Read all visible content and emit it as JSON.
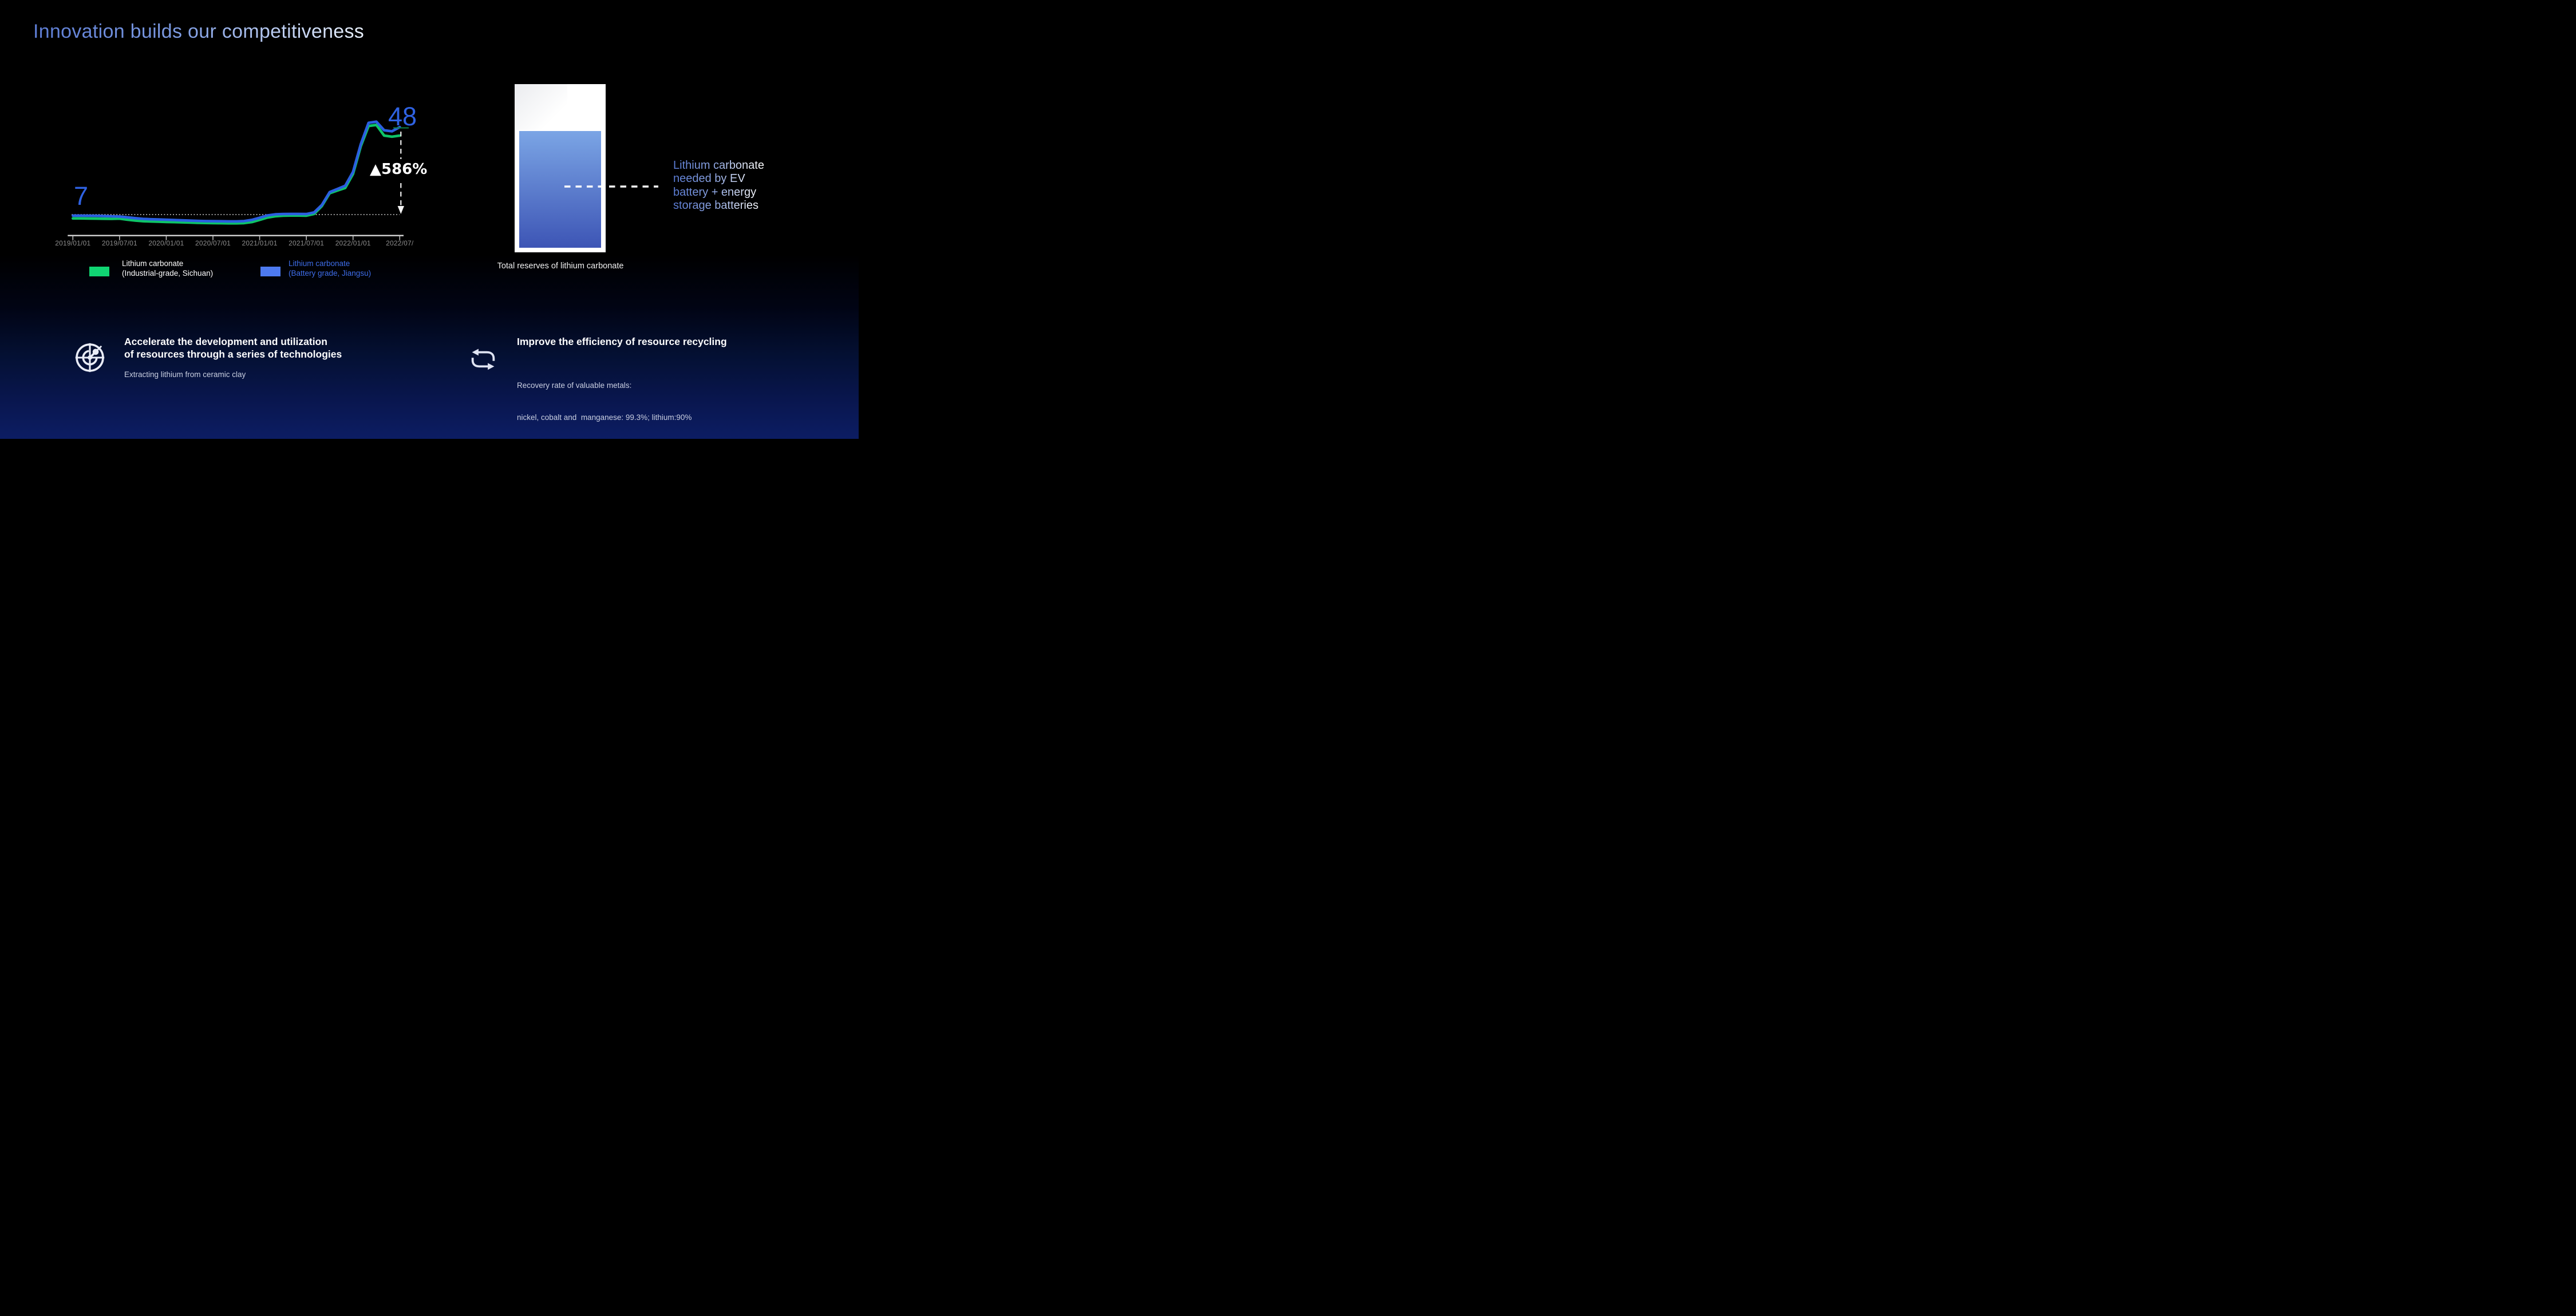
{
  "slide": {
    "title": "Innovation builds our competitiveness",
    "title_color_left": "#5d7dd5",
    "title_color_right": "#e9f1fc",
    "background_top": "#000000",
    "background_bottom": "#0c1d63"
  },
  "chart_data": {
    "type": "line",
    "x_ticks": [
      "2019/01/01",
      "2019/07/01",
      "2020/01/01",
      "2020/07/01",
      "2021/01/01",
      "2021/07/01",
      "2022/01/01",
      "2022/07/"
    ],
    "x_interval": "monthly",
    "x_range": [
      "2019/01",
      "2022/07"
    ],
    "ylim": [
      0,
      55
    ],
    "ref_line_value": 7,
    "grid": "off",
    "legend_position": "bottom",
    "series": [
      {
        "name": "Lithium carbonate (Industrial-grade, Sichuan)",
        "color": "#0ec468",
        "values": [
          5.2,
          5.2,
          5.15,
          5.1,
          5.05,
          5.0,
          5.1,
          4.6,
          4.2,
          3.9,
          3.75,
          3.65,
          3.55,
          3.45,
          3.35,
          3.25,
          3.15,
          3.05,
          3.0,
          2.95,
          2.9,
          2.9,
          3.0,
          3.5,
          4.5,
          5.6,
          6.2,
          6.5,
          6.55,
          6.55,
          6.5,
          7.3,
          11.0,
          17.0,
          18.3,
          19.5,
          26.0,
          39.0,
          48.5,
          49.0,
          44.0,
          43.5,
          44.0
        ]
      },
      {
        "name": "Lithium carbonate (Battery grade, Jiangsu)",
        "color": "#2b5fe0",
        "values": [
          6.5,
          6.5,
          6.45,
          6.4,
          6.3,
          6.2,
          6.1,
          5.7,
          5.3,
          5.0,
          4.8,
          4.7,
          4.6,
          4.45,
          4.3,
          4.15,
          4.05,
          3.95,
          3.9,
          3.85,
          3.8,
          3.8,
          3.95,
          4.5,
          5.5,
          6.6,
          7.1,
          7.25,
          7.3,
          7.3,
          7.25,
          8.0,
          11.5,
          17.5,
          19.0,
          20.5,
          27.0,
          40.0,
          50.0,
          50.5,
          46.5,
          46.0,
          48.0
        ]
      }
    ],
    "annotations": {
      "start_label": "7",
      "end_label": "48",
      "change_label": "▲586%",
      "label_color": "#2f62e2"
    }
  },
  "legend": {
    "industrial": {
      "swatch_color": "#10d573",
      "line1": "Lithium carbonate",
      "line2": "(Industrial-grade, Sichuan)",
      "text_color": "#ffffff"
    },
    "battery": {
      "swatch_color": "#4d7af0",
      "line1": "Lithium carbonate",
      "line2": "(Battery grade, Jiangsu)",
      "text_color": "#3e6de9"
    }
  },
  "reserve": {
    "caption": "Total reserves of lithium carbonate",
    "note_lines": [
      "Lithium carbonate",
      "needed by EV",
      "battery + energy",
      "storage batteries"
    ],
    "fill_top_color": "#7ba5e5",
    "fill_bottom_color": "#3d55b5"
  },
  "features": {
    "left": {
      "icon": "radar-icon",
      "title_line1": "Accelerate the development and utilization",
      "title_line2": "of resources through a series of technologies",
      "subtitle": "Extracting lithium from ceramic clay"
    },
    "right": {
      "icon": "recycle-icon",
      "title": "Improve the efficiency of resource recycling",
      "subtitle_line1": "Recovery rate of valuable metals:",
      "subtitle_line2": "nickel, cobalt and  manganese: 99.3%; lithium:90%"
    }
  }
}
